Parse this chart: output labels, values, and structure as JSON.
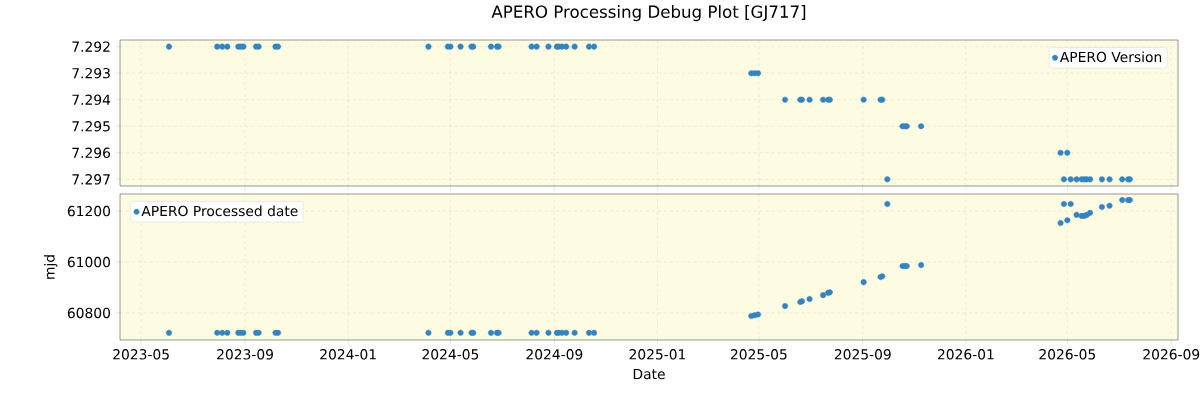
{
  "chart_data": [
    {
      "type": "scatter",
      "title": "APERO Processing Debug Plot [GJ717]",
      "x": [
        "2023-06-03",
        "2023-07-30",
        "2023-08-05",
        "2023-08-11",
        "2023-08-24",
        "2023-08-27",
        "2023-08-30",
        "2023-09-14",
        "2023-09-17",
        "2023-10-07",
        "2023-10-10",
        "2024-04-05",
        "2024-04-28",
        "2024-05-01",
        "2024-05-13",
        "2024-05-26",
        "2024-05-28",
        "2024-06-18",
        "2024-06-25",
        "2024-06-27",
        "2024-08-05",
        "2024-08-11",
        "2024-08-25",
        "2024-09-04",
        "2024-09-06",
        "2024-09-10",
        "2024-09-15",
        "2024-09-25",
        "2024-10-12",
        "2024-10-18",
        "2025-04-22",
        "2025-04-26",
        "2025-04-30",
        "2025-06-01",
        "2025-06-19",
        "2025-06-21",
        "2025-06-30",
        "2025-07-16",
        "2025-07-22",
        "2025-07-24",
        "2025-09-02",
        "2025-09-22",
        "2025-09-24",
        "2025-09-30",
        "2025-10-18",
        "2025-10-21",
        "2025-10-23",
        "2025-11-09",
        "2026-04-23",
        "2026-04-27",
        "2026-05-01",
        "2026-05-05",
        "2026-05-12",
        "2026-05-18",
        "2026-05-21",
        "2026-05-24",
        "2026-05-28",
        "2026-06-11",
        "2026-06-20",
        "2026-07-05",
        "2026-07-12",
        "2026-07-14"
      ],
      "series": [
        {
          "name": "APERO Version",
          "color": "#3484bf",
          "values": [
            7.292,
            7.292,
            7.292,
            7.292,
            7.292,
            7.292,
            7.292,
            7.292,
            7.292,
            7.292,
            7.292,
            7.292,
            7.292,
            7.292,
            7.292,
            7.292,
            7.292,
            7.292,
            7.292,
            7.292,
            7.292,
            7.292,
            7.292,
            7.292,
            7.292,
            7.292,
            7.292,
            7.292,
            7.292,
            7.292,
            7.293,
            7.293,
            7.293,
            7.294,
            7.294,
            7.294,
            7.294,
            7.294,
            7.294,
            7.294,
            7.294,
            7.294,
            7.294,
            7.297,
            7.295,
            7.295,
            7.295,
            7.295,
            7.296,
            7.297,
            7.296,
            7.297,
            7.297,
            7.297,
            7.297,
            7.297,
            7.297,
            7.297,
            7.297,
            7.297,
            7.297,
            7.297
          ]
        }
      ],
      "xlim": [
        "2023-04-06",
        "2026-09-09"
      ],
      "xticks": [
        "2023-05",
        "2023-09",
        "2024-01",
        "2024-05",
        "2024-09",
        "2025-01",
        "2025-05",
        "2025-09",
        "2026-01",
        "2026-05",
        "2026-09"
      ],
      "ylim": [
        7.29725,
        7.29175
      ],
      "yticks": [
        7.292,
        7.293,
        7.294,
        7.295,
        7.296,
        7.297
      ],
      "tick_labels": "y",
      "grid": true,
      "legend": "top right",
      "marker": "circle"
    },
    {
      "type": "scatter",
      "xlabel": "Date",
      "ylabel": "mjd",
      "x": [
        "2023-06-03",
        "2023-07-30",
        "2023-08-05",
        "2023-08-11",
        "2023-08-24",
        "2023-08-27",
        "2023-08-30",
        "2023-09-14",
        "2023-09-17",
        "2023-10-07",
        "2023-10-10",
        "2024-04-05",
        "2024-04-28",
        "2024-05-01",
        "2024-05-13",
        "2024-05-26",
        "2024-05-28",
        "2024-06-18",
        "2024-06-25",
        "2024-06-27",
        "2024-08-05",
        "2024-08-11",
        "2024-08-25",
        "2024-09-04",
        "2024-09-06",
        "2024-09-10",
        "2024-09-15",
        "2024-09-25",
        "2024-10-12",
        "2024-10-18",
        "2025-04-22",
        "2025-04-26",
        "2025-04-30",
        "2025-06-01",
        "2025-06-19",
        "2025-06-21",
        "2025-06-30",
        "2025-07-16",
        "2025-07-22",
        "2025-07-24",
        "2025-09-02",
        "2025-09-22",
        "2025-09-24",
        "2025-09-30",
        "2025-10-18",
        "2025-10-21",
        "2025-10-23",
        "2025-11-09",
        "2026-04-23",
        "2026-04-27",
        "2026-05-01",
        "2026-05-05",
        "2026-05-12",
        "2026-05-18",
        "2026-05-21",
        "2026-05-24",
        "2026-05-28",
        "2026-06-11",
        "2026-06-20",
        "2026-07-05",
        "2026-07-12",
        "2026-07-14"
      ],
      "series": [
        {
          "name": "APERO Processed date",
          "color": "#3484bf",
          "values": [
            60722,
            60722,
            60722,
            60722,
            60722,
            60722,
            60722,
            60722,
            60722,
            60722,
            60722,
            60722,
            60722,
            60722,
            60722,
            60722,
            60722,
            60722,
            60722,
            60722,
            60722,
            60722,
            60722,
            60722,
            60722,
            60722,
            60722,
            60722,
            60722,
            60722,
            60788,
            60791,
            60794,
            60827,
            60843,
            60846,
            60855,
            60870,
            60879,
            60881,
            60921,
            60941,
            60944,
            61228,
            60984,
            60984,
            60984,
            60988,
            61153,
            61228,
            61164,
            61228,
            61185,
            61181,
            61181,
            61185,
            61193,
            61216,
            61221,
            61243,
            61243,
            61243
          ]
        }
      ],
      "xlim": [
        "2023-04-06",
        "2026-09-09"
      ],
      "xticks": [
        "2023-05",
        "2023-09",
        "2024-01",
        "2024-05",
        "2024-09",
        "2025-01",
        "2025-05",
        "2025-09",
        "2026-01",
        "2026-05",
        "2026-09"
      ],
      "ylim": [
        60694,
        61267
      ],
      "yticks": [
        60800,
        61000,
        61200
      ],
      "grid": true,
      "legend": "top left",
      "marker": "circle"
    }
  ]
}
